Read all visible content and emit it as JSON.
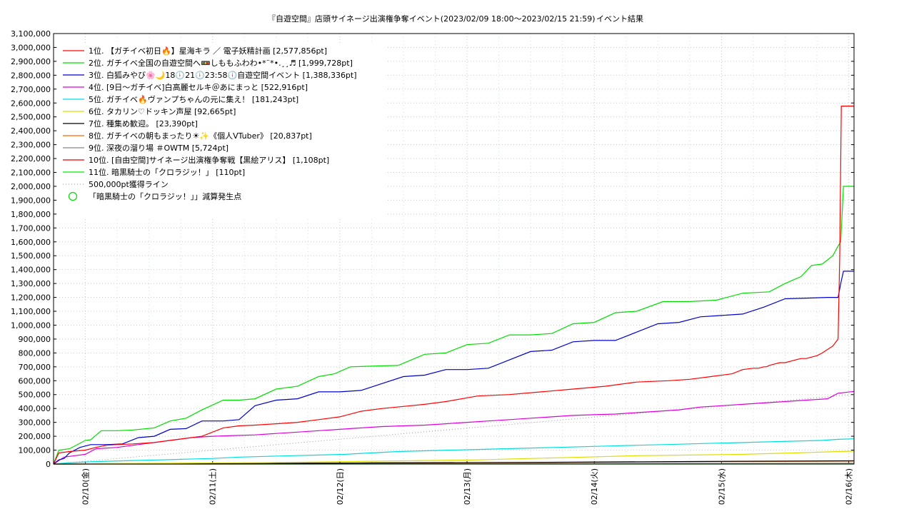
{
  "chart_data": {
    "type": "line",
    "title": "『自遊空間』店頭サイネージ出演権争奪イベント(2023/02/09 18:00〜2023/02/15 21:59)",
    "title_suffix": "イベント結果",
    "xlabel": "",
    "ylabel": "",
    "x_ticks": [
      "02/10(金)",
      "02/11(土)",
      "02/12(日)",
      "02/13(月)",
      "02/14(火)",
      "02/15(水)",
      "02/16(木)"
    ],
    "x_unit": "hours since 2023/02/09 18:00",
    "xlim": [
      0,
      151
    ],
    "ylim": [
      0,
      3100000
    ],
    "y_tick_step": 100000,
    "grid": true,
    "legend_position": "top-left",
    "series": [
      {
        "name": "1位. 【ガチイベ初日🔥】星海キラ ／ 電子妖精計画 [2,577,856pt]",
        "color": "#ff0000",
        "x": [
          0,
          1,
          3,
          6,
          8,
          10,
          12,
          15,
          17,
          19,
          22,
          24,
          28,
          32,
          35,
          38,
          42,
          46,
          50,
          54,
          58,
          62,
          66,
          70,
          74,
          80,
          86,
          92,
          98,
          104,
          110,
          116,
          120,
          124,
          128,
          130,
          132,
          132.7,
          133,
          134,
          134.5,
          135,
          136,
          137,
          138,
          139,
          140,
          141,
          142,
          143,
          144,
          145,
          147,
          148,
          148.3,
          148.6,
          149,
          151
        ],
        "y": [
          0,
          80000,
          90000,
          100000,
          120000,
          135000,
          140000,
          145000,
          150000,
          155000,
          170000,
          180000,
          200000,
          260000,
          275000,
          280000,
          290000,
          300000,
          320000,
          340000,
          380000,
          400000,
          415000,
          430000,
          450000,
          490000,
          500000,
          520000,
          540000,
          560000,
          590000,
          600000,
          610000,
          630000,
          650000,
          680000,
          690000,
          690000,
          690000,
          700000,
          700000,
          710000,
          720000,
          730000,
          730000,
          740000,
          750000,
          760000,
          760000,
          770000,
          780000,
          800000,
          850000,
          900000,
          1500000,
          2577856,
          2577856,
          2577856
        ]
      },
      {
        "name": "2位. ガチイベ全国の自遊空間へ🚥しももふわわ•*¨*•.¸¸♬ [1,999,728pt]",
        "color": "#00dd00",
        "x": [
          0,
          1,
          3,
          6,
          7,
          9,
          12,
          15,
          19,
          22,
          25,
          28,
          32,
          35,
          38,
          42,
          46,
          50,
          53,
          56,
          60,
          65,
          70,
          74,
          78,
          82,
          86,
          90,
          94,
          98,
          102,
          106,
          110,
          115,
          120,
          125,
          130,
          135,
          138,
          141,
          143,
          145,
          147,
          148,
          148.5,
          149,
          151
        ],
        "y": [
          0,
          100000,
          110000,
          170000,
          175000,
          240000,
          240000,
          245000,
          260000,
          310000,
          330000,
          390000,
          460000,
          460000,
          470000,
          540000,
          560000,
          630000,
          650000,
          700000,
          705000,
          710000,
          790000,
          800000,
          860000,
          870000,
          930000,
          930000,
          940000,
          1010000,
          1020000,
          1090000,
          1100000,
          1170000,
          1170000,
          1180000,
          1230000,
          1240000,
          1300000,
          1350000,
          1430000,
          1440000,
          1500000,
          1570000,
          1600000,
          1999728,
          1999728
        ]
      },
      {
        "name": "3位. 白狐みやび🌸🌙18🕕21🕕23:58🕕自遊空間イベント [1,388,336pt]",
        "color": "#0000cc",
        "x": [
          0,
          1,
          2,
          3,
          5,
          7,
          10,
          13,
          16,
          19,
          22,
          25,
          28,
          32,
          35,
          38,
          42,
          46,
          50,
          54,
          58,
          62,
          66,
          70,
          74,
          78,
          82,
          86,
          90,
          94,
          98,
          102,
          106,
          110,
          114,
          118,
          122,
          126,
          130,
          134,
          138,
          142,
          146,
          148,
          148.5,
          149,
          151
        ],
        "y": [
          0,
          30000,
          40000,
          80000,
          120000,
          140000,
          140000,
          145000,
          190000,
          200000,
          250000,
          255000,
          310000,
          310000,
          320000,
          420000,
          460000,
          470000,
          520000,
          520000,
          530000,
          580000,
          630000,
          640000,
          680000,
          680000,
          690000,
          750000,
          810000,
          820000,
          880000,
          890000,
          890000,
          950000,
          1010000,
          1020000,
          1060000,
          1070000,
          1080000,
          1130000,
          1190000,
          1195000,
          1200000,
          1200000,
          1300000,
          1388336,
          1388336
        ]
      },
      {
        "name": "4位. [9日〜ガチイベ]白高麗セルキ＠あにまっと [522,916pt]",
        "color": "#dd00dd",
        "x": [
          0,
          2,
          4,
          6,
          8,
          12,
          18,
          22,
          26,
          30,
          34,
          38,
          42,
          46,
          50,
          54,
          58,
          62,
          66,
          70,
          74,
          78,
          82,
          86,
          90,
          94,
          98,
          102,
          106,
          110,
          114,
          118,
          122,
          126,
          130,
          134,
          138,
          142,
          146,
          148,
          151
        ],
        "y": [
          0,
          50000,
          60000,
          70000,
          110000,
          120000,
          150000,
          170000,
          190000,
          200000,
          205000,
          210000,
          220000,
          230000,
          240000,
          250000,
          260000,
          270000,
          275000,
          280000,
          290000,
          300000,
          310000,
          320000,
          330000,
          340000,
          350000,
          355000,
          360000,
          370000,
          380000,
          390000,
          410000,
          420000,
          430000,
          440000,
          450000,
          460000,
          470000,
          510000,
          522916
        ]
      },
      {
        "name": "5位. ガチイベ🔥ヴァンプちゃんの元に集え！ [181,243pt]",
        "color": "#00dddd",
        "x": [
          0,
          3,
          6,
          10,
          15,
          20,
          25,
          30,
          35,
          40,
          45,
          50,
          55,
          60,
          65,
          70,
          75,
          80,
          85,
          90,
          95,
          100,
          105,
          110,
          115,
          120,
          125,
          130,
          135,
          140,
          145,
          148,
          151
        ],
        "y": [
          0,
          10000,
          15000,
          20000,
          25000,
          30000,
          35000,
          40000,
          50000,
          55000,
          60000,
          65000,
          70000,
          80000,
          90000,
          95000,
          100000,
          105000,
          110000,
          115000,
          120000,
          125000,
          130000,
          135000,
          140000,
          145000,
          150000,
          155000,
          160000,
          165000,
          170000,
          178000,
          181243
        ]
      },
      {
        "name": "6位. タカリン♡ドッキン声屋 [92,665pt]",
        "color": "#dddd00",
        "x": [
          0,
          10,
          20,
          30,
          40,
          50,
          60,
          70,
          80,
          90,
          100,
          110,
          120,
          130,
          140,
          148,
          151
        ],
        "y": [
          0,
          3000,
          5000,
          8000,
          10000,
          15000,
          20000,
          25000,
          30000,
          40000,
          50000,
          60000,
          65000,
          70000,
          80000,
          90000,
          92665
        ]
      },
      {
        "name": "7位. 種集め歓迎。 [23,390pt]",
        "color": "#000000",
        "x": [
          0,
          30,
          60,
          90,
          120,
          151
        ],
        "y": [
          0,
          2000,
          8000,
          12000,
          18000,
          23390
        ]
      },
      {
        "name": "8位. ガチイベの朝もまったり☀✨《個人VTuber》 [20,837pt]",
        "color": "#ff6600",
        "x": [
          0,
          30,
          60,
          90,
          120,
          151
        ],
        "y": [
          0,
          3000,
          7000,
          11000,
          16000,
          20837
        ]
      },
      {
        "name": "9位. 深夜の溜り場 ＃OWTM [5,724pt]",
        "color": "#888888",
        "x": [
          0,
          60,
          151
        ],
        "y": [
          0,
          2000,
          5724
        ]
      },
      {
        "name": "10位. [自由空間]サイネージ出演権争奪戦【黒絵アリス】 [1,108pt]",
        "color": "#ee0000",
        "x": [
          0,
          151
        ],
        "y": [
          0,
          1108
        ]
      },
      {
        "name": "11位. 暗黒騎士の「クロラジッ！」 [110pt]",
        "color": "#00ee00",
        "x": [
          0,
          151
        ],
        "y": [
          0,
          110
        ]
      }
    ],
    "reference_line": {
      "name": "500,000pt獲得ライン",
      "color": "#999999",
      "x": [
        0,
        151
      ],
      "y": [
        0,
        500000
      ]
    },
    "marker_legend": {
      "name": "「暗黒騎士の「クロラジッ！」」減算発生点",
      "color": "#00dd00"
    }
  }
}
